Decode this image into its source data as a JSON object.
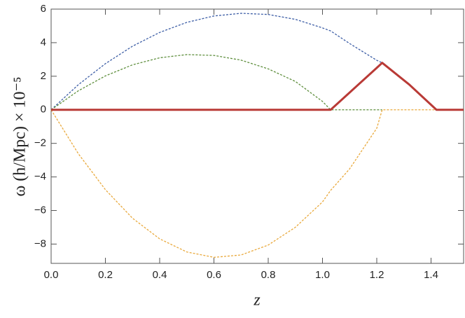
{
  "chart_data": {
    "type": "line",
    "x_label": "z",
    "y_label": "ω (h/Mpc) × 10⁻⁵",
    "x": [
      0,
      0.1,
      0.2,
      0.3,
      0.4,
      0.5,
      0.6,
      0.7,
      0.8,
      0.9,
      1.0,
      1.03,
      1.1,
      1.2,
      1.22,
      1.32,
      1.42,
      1.52
    ],
    "series": [
      {
        "color": "#3d5ea6",
        "dashed": true,
        "width": 1.3,
        "values": [
          0,
          1.49,
          2.75,
          3.79,
          4.61,
          5.21,
          5.59,
          5.75,
          5.68,
          5.39,
          4.88,
          4.7,
          3.95,
          2.95,
          2.8,
          null,
          null,
          null
        ]
      },
      {
        "color": "#5f8f3e",
        "dashed": true,
        "width": 1.3,
        "values": [
          0,
          1.13,
          2.02,
          2.68,
          3.1,
          3.29,
          3.24,
          2.96,
          2.44,
          1.69,
          0.5,
          0,
          0,
          0,
          0,
          null,
          null,
          null
        ]
      },
      {
        "color": "#e9a93c",
        "dashed": true,
        "width": 1.3,
        "values": [
          0,
          -2.61,
          -4.76,
          -6.46,
          -7.69,
          -8.47,
          -8.79,
          -8.65,
          -8.06,
          -7.0,
          -5.49,
          -4.8,
          -3.52,
          -1.1,
          0,
          0,
          0,
          0
        ]
      },
      {
        "color": "#b93a36",
        "dashed": false,
        "width": 3,
        "values": [
          0,
          0,
          0,
          0,
          0,
          0,
          0,
          0,
          0,
          0,
          0,
          0,
          1.03,
          2.5,
          2.8,
          1.5,
          0,
          0
        ]
      }
    ],
    "xlim": [
      0,
      1.52
    ],
    "ylim": [
      -9.15,
      6
    ],
    "xticks": [
      {
        "value": 0,
        "label": "0.0"
      },
      0.2,
      0.4,
      0.6,
      0.8,
      {
        "value": 1,
        "label": "1.0"
      },
      1.2,
      1.4
    ],
    "yticks": [
      {
        "value": -8,
        "label": "−8"
      },
      {
        "value": -6,
        "label": "−6"
      },
      {
        "value": -4,
        "label": "−4"
      },
      {
        "value": -2,
        "label": "−2"
      },
      0,
      2,
      4,
      6
    ],
    "grid": false
  }
}
